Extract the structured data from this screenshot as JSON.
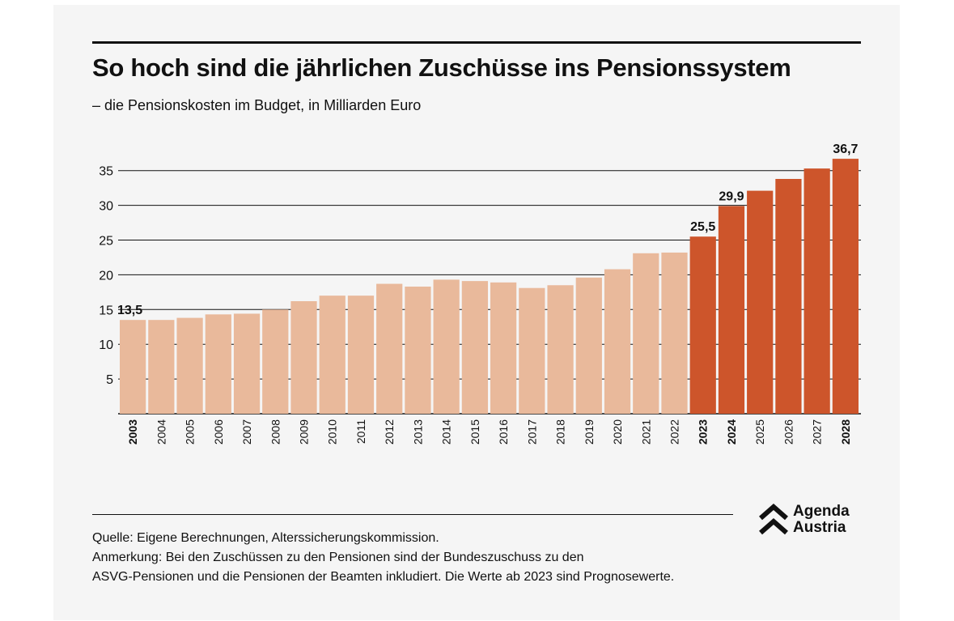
{
  "title": "So hoch sind die jährlichen Zuschüsse ins Pensionssystem",
  "subtitle": "– die Pensionskosten im Budget, in Milliarden Euro",
  "chart_data": {
    "type": "bar",
    "title": "So hoch sind die jährlichen Zuschüsse ins Pensionssystem",
    "xlabel": "",
    "ylabel": "Milliarden Euro",
    "ylim": [
      0,
      38
    ],
    "yticks": [
      5,
      10,
      15,
      20,
      25,
      30,
      35
    ],
    "grid": true,
    "categories": [
      "2003",
      "2004",
      "2005",
      "2006",
      "2007",
      "2008",
      "2009",
      "2010",
      "2011",
      "2012",
      "2013",
      "2014",
      "2015",
      "2016",
      "2017",
      "2018",
      "2019",
      "2020",
      "2021",
      "2022",
      "2023",
      "2024",
      "2025",
      "2026",
      "2027",
      "2028"
    ],
    "values": [
      13.5,
      13.5,
      13.8,
      14.3,
      14.4,
      15.0,
      16.2,
      17.0,
      17.0,
      18.7,
      18.3,
      19.3,
      19.1,
      18.9,
      18.1,
      18.5,
      19.6,
      20.8,
      23.1,
      23.2,
      25.5,
      29.9,
      32.1,
      33.8,
      35.3,
      36.7
    ],
    "forecast_from": "2023",
    "bold_ticks": [
      "2003",
      "2023",
      "2024",
      "2028"
    ],
    "data_labels": [
      {
        "category": "2003",
        "label": "13,5"
      },
      {
        "category": "2023",
        "label": "25,5"
      },
      {
        "category": "2024",
        "label": "29,9"
      },
      {
        "category": "2028",
        "label": "36,7"
      }
    ],
    "colors": {
      "actual": "#e9b99b",
      "forecast": "#cd552b",
      "grid": "#111111"
    }
  },
  "notes": {
    "source": "Quelle: Eigene Berechnungen, Alterssicherungskommission.",
    "remark_line1": "Anmerkung: Bei den Zuschüssen zu den Pensionen sind der Bundeszuschuss zu den",
    "remark_line2": "ASVG-Pensionen und die Pensionen der Beamten inkludiert. Die Werte ab 2023 sind Prognosewerte."
  },
  "logo": {
    "line1": "Agenda",
    "line2": "Austria",
    "icon": "double-chevron-up-icon"
  }
}
